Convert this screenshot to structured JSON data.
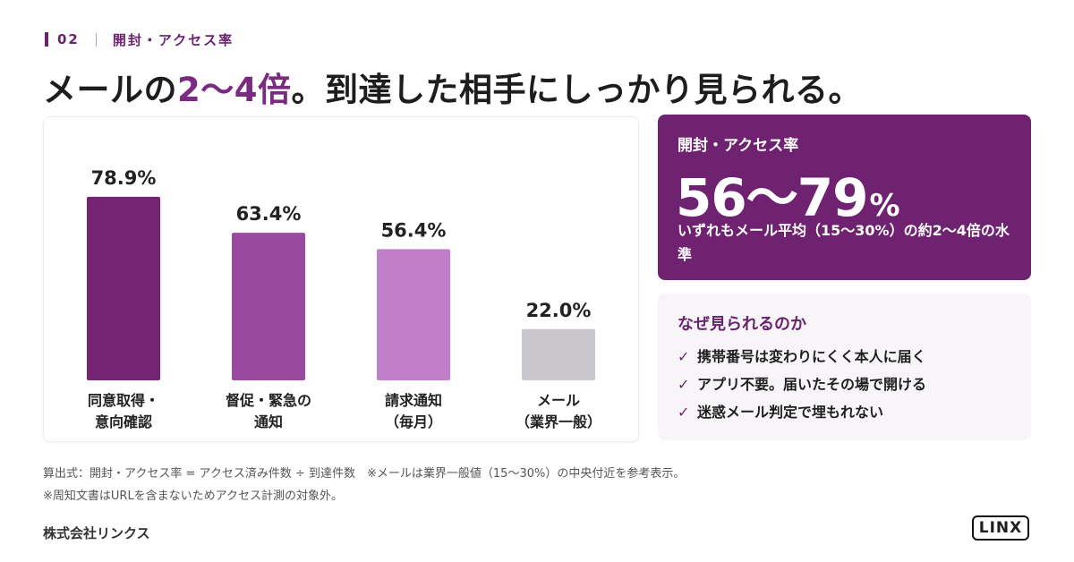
{
  "section": {
    "number": "02",
    "title": "開封・アクセス率"
  },
  "headline": {
    "before": "メールの",
    "highlight": "2〜4倍",
    "after": "。到達した相手にしっかり見られる。"
  },
  "chart_data": {
    "type": "bar",
    "categories": [
      [
        "同意取得・",
        "意向確認"
      ],
      [
        "督促・緊急の",
        "通知"
      ],
      [
        "請求通知",
        "（毎月）"
      ],
      [
        "メール",
        "（業界一般）"
      ]
    ],
    "values": [
      78.9,
      63.4,
      56.4,
      22.0
    ],
    "value_labels": [
      "78.9%",
      "63.4%",
      "56.4%",
      "22.0%"
    ],
    "unit": "%",
    "ylim": [
      0,
      100
    ],
    "colors": [
      "#742473",
      "#99499f",
      "#c27fc9",
      "#c9c7cc"
    ],
    "title": "",
    "xlabel": "",
    "ylabel": ""
  },
  "stat": {
    "title": "開封・アクセス率",
    "value": "56〜79",
    "unit": "%",
    "note": "いずれもメール平均（15〜30%）の約2〜4倍の水準"
  },
  "reasons": {
    "title": "なぜ見られるのか",
    "check": "✓",
    "items": [
      "携帯番号は変わりにくく本人に届く",
      "アプリ不要。届いたその場で開ける",
      "迷惑メール判定で埋もれない"
    ]
  },
  "footnotes": [
    "算出式：開封・アクセス率 = アクセス済み件数 ÷ 到達件数　※メールは業界一般値（15〜30%）の中央付近を参考表示。",
    "※周知文書はURLを含まないためアクセス計測の対象外。"
  ],
  "company": "株式会社リンクス",
  "logo": "LINX"
}
